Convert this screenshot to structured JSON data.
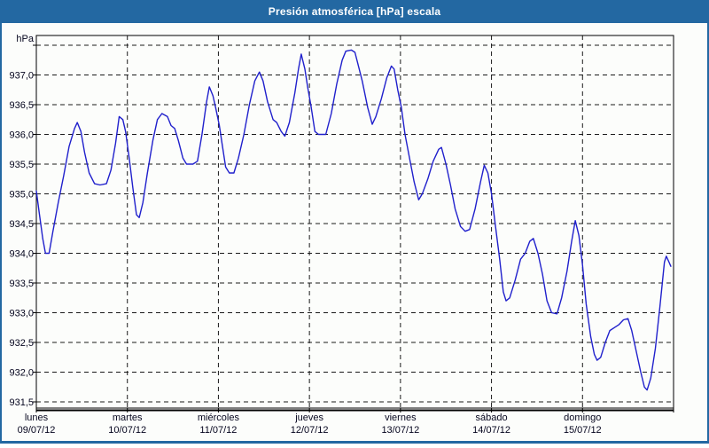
{
  "window": {
    "title": "Presión atmosférica [hPa] escala"
  },
  "colors": {
    "header_blue": "#2368a2",
    "panel_background": "#fcfdfb",
    "grid_color": "#1a1a1a",
    "axis_color": "#000000",
    "label_color": "#05051e",
    "line_color": "#2020cc"
  },
  "chart_data": {
    "type": "line",
    "title": "Presión atmosférica [hPa] escala",
    "ylabel": "hPa",
    "xlabel": "",
    "ylim": [
      931.5,
      937.5
    ],
    "ytick_step": 0.5,
    "grid": "dashed",
    "legend": "none",
    "y_gridline_values": [
      931.5,
      932.0,
      932.5,
      933.0,
      933.5,
      934.0,
      934.5,
      935.0,
      935.5,
      936.0,
      936.5,
      937.0,
      937.5
    ],
    "yticks": [
      {
        "value": 937.0,
        "label": "937,0"
      },
      {
        "value": 936.5,
        "label": "936,5"
      },
      {
        "value": 936.0,
        "label": "936,0"
      },
      {
        "value": 935.5,
        "label": "935,5"
      },
      {
        "value": 935.0,
        "label": "935,0"
      },
      {
        "value": 934.5,
        "label": "934,5"
      },
      {
        "value": 934.0,
        "label": "934,0"
      },
      {
        "value": 933.5,
        "label": "933,5"
      },
      {
        "value": 933.0,
        "label": "933,0"
      },
      {
        "value": 932.5,
        "label": "932,5"
      },
      {
        "value": 932.0,
        "label": "932,0"
      },
      {
        "value": 931.5,
        "label": "931,5"
      }
    ],
    "days": [
      {
        "name": "lunes",
        "date": "09/07/12"
      },
      {
        "name": "martes",
        "date": "10/07/12"
      },
      {
        "name": "miércoles",
        "date": "11/07/12"
      },
      {
        "name": "jueves",
        "date": "12/07/12"
      },
      {
        "name": "viernes",
        "date": "13/07/12"
      },
      {
        "name": "sábado",
        "date": "14/07/12"
      },
      {
        "name": "domingo",
        "date": "15/07/12"
      }
    ],
    "series": [
      {
        "name": "Presión atmosférica",
        "color": "#2020cc",
        "points": [
          [
            0.0,
            935.05
          ],
          [
            0.03,
            934.7
          ],
          [
            0.07,
            934.25
          ],
          [
            0.1,
            934.0
          ],
          [
            0.14,
            934.0
          ],
          [
            0.18,
            934.35
          ],
          [
            0.24,
            934.85
          ],
          [
            0.3,
            935.3
          ],
          [
            0.36,
            935.8
          ],
          [
            0.42,
            936.1
          ],
          [
            0.45,
            936.2
          ],
          [
            0.49,
            936.05
          ],
          [
            0.53,
            935.7
          ],
          [
            0.58,
            935.35
          ],
          [
            0.64,
            935.17
          ],
          [
            0.7,
            935.15
          ],
          [
            0.77,
            935.17
          ],
          [
            0.82,
            935.4
          ],
          [
            0.87,
            935.85
          ],
          [
            0.91,
            936.3
          ],
          [
            0.95,
            936.25
          ],
          [
            0.98,
            936.05
          ],
          [
            1.02,
            935.6
          ],
          [
            1.06,
            935.1
          ],
          [
            1.1,
            934.65
          ],
          [
            1.13,
            934.6
          ],
          [
            1.17,
            934.85
          ],
          [
            1.22,
            935.35
          ],
          [
            1.28,
            935.9
          ],
          [
            1.33,
            936.25
          ],
          [
            1.38,
            936.35
          ],
          [
            1.44,
            936.3
          ],
          [
            1.48,
            936.15
          ],
          [
            1.52,
            936.1
          ],
          [
            1.56,
            935.9
          ],
          [
            1.61,
            935.6
          ],
          [
            1.65,
            935.5
          ],
          [
            1.72,
            935.5
          ],
          [
            1.77,
            935.55
          ],
          [
            1.82,
            936.0
          ],
          [
            1.87,
            936.55
          ],
          [
            1.9,
            936.8
          ],
          [
            1.94,
            936.65
          ],
          [
            1.97,
            936.45
          ],
          [
            2.01,
            936.15
          ],
          [
            2.04,
            935.85
          ],
          [
            2.08,
            935.45
          ],
          [
            2.12,
            935.35
          ],
          [
            2.17,
            935.35
          ],
          [
            2.22,
            935.6
          ],
          [
            2.28,
            936.0
          ],
          [
            2.34,
            936.5
          ],
          [
            2.4,
            936.9
          ],
          [
            2.45,
            937.05
          ],
          [
            2.49,
            936.9
          ],
          [
            2.54,
            936.55
          ],
          [
            2.6,
            936.25
          ],
          [
            2.64,
            936.2
          ],
          [
            2.69,
            936.05
          ],
          [
            2.73,
            935.97
          ],
          [
            2.78,
            936.2
          ],
          [
            2.84,
            936.7
          ],
          [
            2.88,
            937.1
          ],
          [
            2.91,
            937.35
          ],
          [
            2.95,
            937.1
          ],
          [
            2.98,
            936.8
          ],
          [
            3.02,
            936.45
          ],
          [
            3.06,
            936.05
          ],
          [
            3.1,
            936.0
          ],
          [
            3.18,
            936.0
          ],
          [
            3.24,
            936.35
          ],
          [
            3.3,
            936.85
          ],
          [
            3.36,
            937.25
          ],
          [
            3.4,
            937.4
          ],
          [
            3.46,
            937.42
          ],
          [
            3.5,
            937.38
          ],
          [
            3.53,
            937.2
          ],
          [
            3.58,
            936.9
          ],
          [
            3.64,
            936.45
          ],
          [
            3.69,
            936.17
          ],
          [
            3.73,
            936.3
          ],
          [
            3.79,
            936.6
          ],
          [
            3.85,
            936.95
          ],
          [
            3.9,
            937.15
          ],
          [
            3.93,
            937.1
          ],
          [
            3.97,
            936.75
          ],
          [
            4.01,
            936.45
          ],
          [
            4.05,
            936.0
          ],
          [
            4.1,
            935.6
          ],
          [
            4.15,
            935.2
          ],
          [
            4.2,
            934.9
          ],
          [
            4.24,
            935.0
          ],
          [
            4.3,
            935.25
          ],
          [
            4.36,
            935.55
          ],
          [
            4.42,
            935.75
          ],
          [
            4.45,
            935.78
          ],
          [
            4.5,
            935.5
          ],
          [
            4.55,
            935.15
          ],
          [
            4.6,
            934.75
          ],
          [
            4.66,
            934.45
          ],
          [
            4.71,
            934.37
          ],
          [
            4.76,
            934.4
          ],
          [
            4.82,
            934.75
          ],
          [
            4.88,
            935.2
          ],
          [
            4.92,
            935.48
          ],
          [
            4.96,
            935.35
          ],
          [
            5.0,
            935.0
          ],
          [
            5.04,
            934.5
          ],
          [
            5.09,
            933.9
          ],
          [
            5.13,
            933.35
          ],
          [
            5.16,
            933.2
          ],
          [
            5.2,
            933.25
          ],
          [
            5.26,
            933.55
          ],
          [
            5.32,
            933.9
          ],
          [
            5.37,
            934.0
          ],
          [
            5.42,
            934.2
          ],
          [
            5.46,
            934.25
          ],
          [
            5.51,
            934.0
          ],
          [
            5.56,
            933.65
          ],
          [
            5.61,
            933.2
          ],
          [
            5.66,
            933.0
          ],
          [
            5.72,
            932.98
          ],
          [
            5.77,
            933.25
          ],
          [
            5.83,
            933.7
          ],
          [
            5.88,
            934.2
          ],
          [
            5.92,
            934.55
          ],
          [
            5.96,
            934.3
          ],
          [
            6.0,
            933.8
          ],
          [
            6.04,
            933.15
          ],
          [
            6.09,
            932.6
          ],
          [
            6.13,
            932.3
          ],
          [
            6.16,
            932.2
          ],
          [
            6.2,
            932.25
          ],
          [
            6.25,
            932.5
          ],
          [
            6.3,
            932.7
          ],
          [
            6.35,
            932.75
          ],
          [
            6.4,
            932.8
          ],
          [
            6.45,
            932.88
          ],
          [
            6.5,
            932.9
          ],
          [
            6.54,
            932.7
          ],
          [
            6.59,
            932.35
          ],
          [
            6.64,
            932.0
          ],
          [
            6.68,
            931.75
          ],
          [
            6.71,
            931.7
          ],
          [
            6.75,
            931.9
          ],
          [
            6.8,
            932.4
          ],
          [
            6.85,
            933.1
          ],
          [
            6.9,
            933.85
          ],
          [
            6.92,
            933.95
          ],
          [
            6.95,
            933.85
          ],
          [
            6.97,
            933.78
          ]
        ]
      }
    ]
  }
}
